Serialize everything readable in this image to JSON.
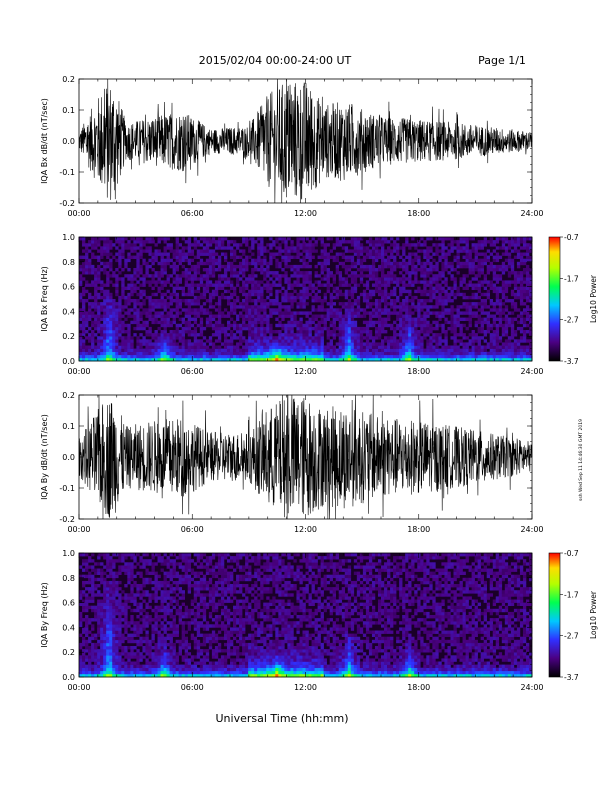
{
  "header": {
    "title": "2015/02/04  00:00-24:00 UT",
    "page_label": "Page 1/1"
  },
  "footer": {
    "xlabel": "Universal Time (hh:mm)",
    "side_note": "ssh Wed Sep 11 14:46:30 GMT 2019"
  },
  "x_tick_labels": [
    "00:00",
    "06:00",
    "12:00",
    "18:00",
    "24:00"
  ],
  "colorbar": {
    "label": "Log10 Power",
    "tick_labels": [
      "-0.7",
      "-1.7",
      "-2.7",
      "-3.7"
    ],
    "colors": [
      "#000000",
      "#4b0082",
      "#3030ff",
      "#00c8ff",
      "#00ff50",
      "#b4ff00",
      "#ffdc00",
      "#ff0000"
    ]
  },
  "chart_data": [
    {
      "type": "line",
      "ylabel": "IQA Bx dB/dt (nT/sec)",
      "xlim": [
        0,
        24
      ],
      "ylim": [
        -0.2,
        0.2
      ],
      "yticks": [
        "-0.2",
        "-0.1",
        "0.0",
        "0.1",
        "0.2"
      ],
      "grid": false,
      "activity_envelope": {
        "x_hours": [
          0,
          1.5,
          1.8,
          2.5,
          4.0,
          5.5,
          7.0,
          9.0,
          10.0,
          11.0,
          12.0,
          13.0,
          14.0,
          16.0,
          18.0,
          20.0,
          24.0
        ],
        "amplitude": [
          0.03,
          0.2,
          0.2,
          0.06,
          0.08,
          0.1,
          0.04,
          0.05,
          0.15,
          0.2,
          0.2,
          0.12,
          0.13,
          0.08,
          0.07,
          0.06,
          0.03
        ]
      }
    },
    {
      "type": "heatmap",
      "ylabel": "IQA Bx Freq (Hz)",
      "xlim": [
        0,
        24
      ],
      "ylim": [
        0,
        1.0
      ],
      "yticks": [
        "0.0",
        "0.2",
        "0.4",
        "0.6",
        "0.8",
        "1.0"
      ],
      "zlim": [
        -3.7,
        -0.7
      ],
      "zlabel": "Log10 Power",
      "features": [
        {
          "x_hours": 1.6,
          "max_freq_hz": 0.6
        },
        {
          "x_hours": 4.5,
          "max_freq_hz": 0.25
        },
        {
          "x_hours": 10.5,
          "max_freq_hz": 0.15
        },
        {
          "x_hours": 14.3,
          "max_freq_hz": 0.45
        },
        {
          "x_hours": 17.5,
          "max_freq_hz": 0.4
        }
      ]
    },
    {
      "type": "line",
      "ylabel": "IQA By dB/dt (nT/sec)",
      "xlim": [
        0,
        24
      ],
      "ylim": [
        -0.2,
        0.2
      ],
      "yticks": [
        "-0.2",
        "-0.1",
        "0.0",
        "0.1",
        "0.2"
      ],
      "grid": false,
      "activity_envelope": {
        "x_hours": [
          0,
          1.5,
          1.8,
          2.5,
          4.0,
          5.5,
          7.0,
          9.0,
          10.0,
          11.0,
          12.0,
          13.0,
          14.0,
          16.0,
          18.0,
          20.0,
          24.0
        ],
        "amplitude": [
          0.06,
          0.2,
          0.2,
          0.1,
          0.12,
          0.13,
          0.08,
          0.08,
          0.16,
          0.2,
          0.2,
          0.16,
          0.17,
          0.13,
          0.12,
          0.1,
          0.05
        ]
      }
    },
    {
      "type": "heatmap",
      "ylabel": "IQA By Freq (Hz)",
      "xlim": [
        0,
        24
      ],
      "ylim": [
        0,
        1.0
      ],
      "yticks": [
        "0.0",
        "0.2",
        "0.4",
        "0.6",
        "0.8",
        "1.0"
      ],
      "zlim": [
        -3.7,
        -0.7
      ],
      "zlabel": "Log10 Power",
      "features": [
        {
          "x_hours": 1.6,
          "max_freq_hz": 0.8
        },
        {
          "x_hours": 4.5,
          "max_freq_hz": 0.3
        },
        {
          "x_hours": 10.5,
          "max_freq_hz": 0.2
        },
        {
          "x_hours": 14.3,
          "max_freq_hz": 0.4
        },
        {
          "x_hours": 17.5,
          "max_freq_hz": 0.3
        }
      ]
    }
  ]
}
